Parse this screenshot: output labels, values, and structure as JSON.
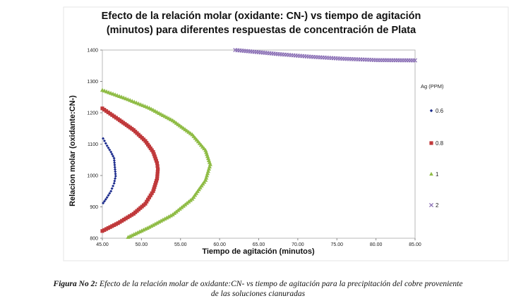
{
  "chart_data": {
    "type": "scatter",
    "title_line1": "Efecto de la relación molar (oxidante: CN-) vs tiempo de agitación",
    "title_line2": "(minutos) para diferentes respuestas de concentración de Plata",
    "xlabel": "Tiempo de agitación (minutos)",
    "ylabel": "Relacion molar (oxidante:CN-)",
    "xlim": [
      45,
      85
    ],
    "ylim": [
      800,
      1400
    ],
    "x_ticks": [
      "45.00",
      "50.00",
      "55.00",
      "60.00",
      "65.00",
      "70.00",
      "75.00",
      "80.00",
      "85.00"
    ],
    "y_ticks": [
      "800",
      "900",
      "1000",
      "1100",
      "1200",
      "1300",
      "1400"
    ],
    "grid": false,
    "legend_title": "Ag (PPM)",
    "legend_position": "right",
    "series": [
      {
        "name": "0.6",
        "marker": "diamond",
        "color": "#1a2a8c",
        "points": [
          [
            45.1,
            912
          ],
          [
            45.6,
            930
          ],
          [
            46.1,
            950
          ],
          [
            46.5,
            975
          ],
          [
            46.7,
            998
          ],
          [
            46.5,
            1055
          ],
          [
            46.1,
            1075
          ],
          [
            45.6,
            1095
          ],
          [
            45.1,
            1118
          ]
        ]
      },
      {
        "name": "0.8",
        "marker": "square",
        "color": "#c0393b",
        "points": [
          [
            45.0,
            823
          ],
          [
            47.0,
            848
          ],
          [
            49.0,
            878
          ],
          [
            50.5,
            910
          ],
          [
            51.5,
            950
          ],
          [
            52.0,
            990
          ],
          [
            52.1,
            1020
          ],
          [
            52.0,
            1040
          ],
          [
            51.5,
            1075
          ],
          [
            50.5,
            1110
          ],
          [
            49.0,
            1145
          ],
          [
            47.0,
            1180
          ],
          [
            45.0,
            1214
          ]
        ]
      },
      {
        "name": "1",
        "marker": "triangle",
        "color": "#8fbc45",
        "points": [
          [
            48.3,
            803
          ],
          [
            51.0,
            835
          ],
          [
            54.0,
            875
          ],
          [
            56.5,
            925
          ],
          [
            58.2,
            985
          ],
          [
            58.8,
            1035
          ],
          [
            58.2,
            1080
          ],
          [
            56.5,
            1130
          ],
          [
            54.0,
            1175
          ],
          [
            51.0,
            1215
          ],
          [
            48.0,
            1245
          ],
          [
            45.0,
            1272
          ]
        ]
      },
      {
        "name": "2",
        "marker": "x",
        "color": "#8a6fb5",
        "points": [
          [
            62.0,
            1400
          ],
          [
            65.0,
            1393
          ],
          [
            68.0,
            1386
          ],
          [
            72.0,
            1378
          ],
          [
            76.0,
            1372
          ],
          [
            80.0,
            1368
          ],
          [
            85.0,
            1367
          ]
        ]
      }
    ]
  },
  "caption": {
    "label": "Figura No 2:",
    "text_line1": " Efecto de la relación molar de oxidante:CN-  vs tiempo de agitación para la precipitación del cobre proveniente",
    "text_line2": "de las soluciones cianuradas"
  }
}
